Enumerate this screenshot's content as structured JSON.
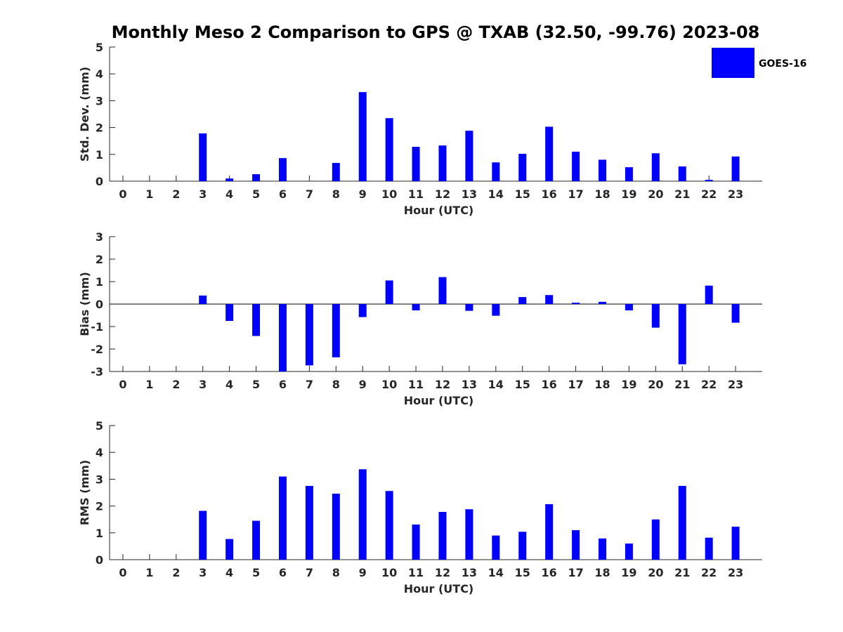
{
  "chart_data": {
    "title": "Monthly Meso 2 Comparison to GPS @ TXAB (32.50, -99.76) 2023-08",
    "type": "bar",
    "bar_color": "#0000ff",
    "legend": {
      "label": "GOES-16",
      "position": "top-right"
    },
    "categories": [
      "0",
      "1",
      "2",
      "3",
      "4",
      "5",
      "6",
      "7",
      "8",
      "9",
      "10",
      "11",
      "12",
      "13",
      "14",
      "15",
      "16",
      "17",
      "18",
      "19",
      "20",
      "21",
      "22",
      "23"
    ],
    "panels": [
      {
        "type": "bar",
        "ylabel": "Std. Dev. (mm)",
        "xlabel": "Hour (UTC)",
        "ylim": [
          0,
          5
        ],
        "yticks": [
          "0",
          "1",
          "2",
          "3",
          "4",
          "5"
        ],
        "series": [
          {
            "name": "GOES-16",
            "values": [
              null,
              null,
              null,
              1.78,
              0.1,
              0.26,
              0.86,
              null,
              0.68,
              3.32,
              2.35,
              1.28,
              1.33,
              1.88,
              0.7,
              1.02,
              2.03,
              1.1,
              0.8,
              0.52,
              1.04,
              0.55,
              0.05,
              0.92
            ]
          }
        ]
      },
      {
        "type": "bar",
        "ylabel": "Bias (mm)",
        "xlabel": "Hour (UTC)",
        "ylim": [
          -3,
          3
        ],
        "yticks": [
          "-3",
          "-2",
          "-1",
          "0",
          "1",
          "2",
          "3"
        ],
        "series": [
          {
            "name": "GOES-16",
            "values": [
              null,
              null,
              null,
              0.38,
              -0.75,
              -1.42,
              -3.0,
              -2.73,
              -2.37,
              -0.58,
              1.05,
              -0.28,
              1.2,
              -0.3,
              -0.52,
              0.31,
              0.4,
              0.06,
              0.1,
              -0.28,
              -1.05,
              -2.68,
              0.82,
              -0.83
            ]
          }
        ]
      },
      {
        "type": "bar",
        "ylabel": "RMS (mm)",
        "xlabel": "Hour (UTC)",
        "ylim": [
          0,
          5
        ],
        "yticks": [
          "0",
          "1",
          "2",
          "3",
          "4",
          "5"
        ],
        "series": [
          {
            "name": "GOES-16",
            "values": [
              null,
              null,
              null,
              1.82,
              0.77,
              1.45,
              3.1,
              2.75,
              2.46,
              3.37,
              2.56,
              1.31,
              1.78,
              1.88,
              0.9,
              1.04,
              2.07,
              1.1,
              0.79,
              0.6,
              1.5,
              2.75,
              0.82,
              1.23
            ]
          }
        ]
      }
    ]
  }
}
